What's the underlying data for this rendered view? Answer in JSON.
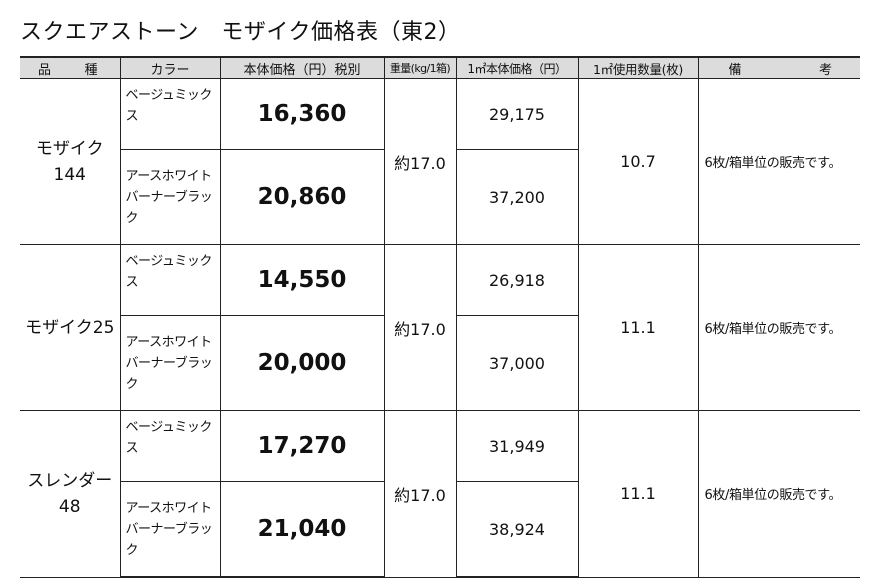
{
  "title": "スクエアストーン　モザイク価格表（東2）",
  "headers": {
    "product_a": "品",
    "product_b": "種",
    "color": "カラー",
    "price": "本体価格（円）税別",
    "weight": "重量(kg/1箱)",
    "sqm_price": "1㎡本体価格（円）",
    "usage": "1㎡使用数量(枚)",
    "notes_a": "備",
    "notes_b": "考"
  },
  "groups": [
    {
      "product_line1": "モザイク",
      "product_line2": "144",
      "weight": "約17.0",
      "usage": "10.7",
      "notes": "6枚/箱単位の販売です。",
      "rows": [
        {
          "color_line1": "ベージュミックス",
          "color_line2": "",
          "price": "16,360",
          "sqm_price": "29,175"
        },
        {
          "color_line1": "アースホワイト",
          "color_line2": "バーナーブラック",
          "price": "20,860",
          "sqm_price": "37,200"
        }
      ]
    },
    {
      "product_line1": "モザイク25",
      "product_line2": "",
      "weight": "約17.0",
      "usage": "11.1",
      "notes": "6枚/箱単位の販売です。",
      "rows": [
        {
          "color_line1": "ベージュミックス",
          "color_line2": "",
          "price": "14,550",
          "sqm_price": "26,918"
        },
        {
          "color_line1": "アースホワイト",
          "color_line2": "バーナーブラック",
          "price": "20,000",
          "sqm_price": "37,000"
        }
      ]
    },
    {
      "product_line1": "スレンダー",
      "product_line2": "48",
      "weight": "約17.0",
      "usage": "11.1",
      "notes": "6枚/箱単位の販売です。",
      "rows": [
        {
          "color_line1": "ベージュミックス",
          "color_line2": "",
          "price": "17,270",
          "sqm_price": "31,949"
        },
        {
          "color_line1": "アースホワイト",
          "color_line2": "バーナーブラック",
          "price": "21,040",
          "sqm_price": "38,924"
        }
      ]
    }
  ]
}
